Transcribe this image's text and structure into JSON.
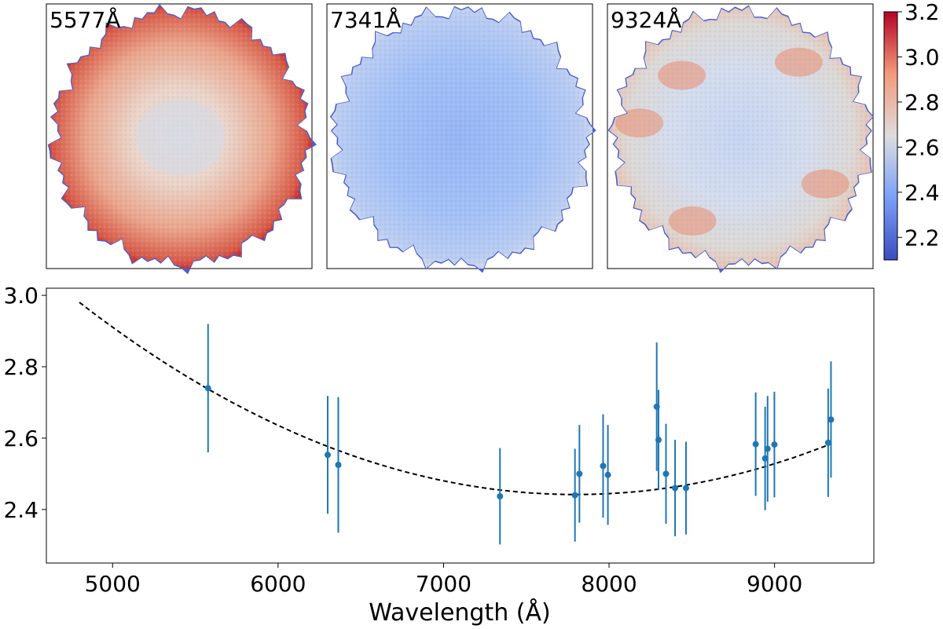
{
  "colors": {
    "errorbar": "#1f77b4",
    "point": "#1f77b4",
    "fit": "#000000",
    "cmap_low": "#3b4cc0",
    "cmap_mid": "#dddddd",
    "cmap_high": "#b40426"
  },
  "chart_data": [
    {
      "type": "heatmap",
      "panels": [
        {
          "label": "5577Å",
          "variant": "warm"
        },
        {
          "label": "7341Å",
          "variant": "cool"
        },
        {
          "label": "9324Å",
          "variant": "mixed"
        }
      ],
      "colorbar": {
        "vmin": 2.1,
        "vmax": 3.2,
        "ticks": [
          2.2,
          2.4,
          2.6,
          2.8,
          3.0,
          3.2
        ],
        "tick_labels": [
          "2.2",
          "2.4",
          "2.6",
          "2.8",
          "3.0",
          "3.2"
        ],
        "colormap": "coolwarm"
      }
    },
    {
      "type": "scatter",
      "xlabel": "Wavelength (Å)",
      "ylabel": "",
      "xlim": [
        4600,
        9600
      ],
      "ylim": [
        2.25,
        3.02
      ],
      "xticks": [
        5000,
        6000,
        7000,
        8000,
        9000
      ],
      "xtick_labels": [
        "5000",
        "6000",
        "7000",
        "8000",
        "9000"
      ],
      "yticks": [
        2.4,
        2.6,
        2.8,
        3.0
      ],
      "ytick_labels": [
        "2.4",
        "2.6",
        "2.8",
        "3.0"
      ],
      "points": [
        {
          "x": 5577,
          "y": 2.74,
          "err": 0.18
        },
        {
          "x": 6300,
          "y": 2.553,
          "err": 0.165
        },
        {
          "x": 6364,
          "y": 2.525,
          "err": 0.19
        },
        {
          "x": 7341,
          "y": 2.437,
          "err": 0.135
        },
        {
          "x": 7794,
          "y": 2.44,
          "err": 0.13
        },
        {
          "x": 7821,
          "y": 2.5,
          "err": 0.137
        },
        {
          "x": 7964,
          "y": 2.522,
          "err": 0.145
        },
        {
          "x": 7993,
          "y": 2.497,
          "err": 0.14
        },
        {
          "x": 8288,
          "y": 2.688,
          "err": 0.18
        },
        {
          "x": 8299,
          "y": 2.595,
          "err": 0.14
        },
        {
          "x": 8344,
          "y": 2.5,
          "err": 0.14
        },
        {
          "x": 8399,
          "y": 2.46,
          "err": 0.135
        },
        {
          "x": 8465,
          "y": 2.46,
          "err": 0.13
        },
        {
          "x": 8886,
          "y": 2.583,
          "err": 0.145
        },
        {
          "x": 8943,
          "y": 2.543,
          "err": 0.145
        },
        {
          "x": 8958,
          "y": 2.57,
          "err": 0.148
        },
        {
          "x": 8999,
          "y": 2.582,
          "err": 0.148
        },
        {
          "x": 9324,
          "y": 2.587,
          "err": 0.152
        },
        {
          "x": 9341,
          "y": 2.652,
          "err": 0.163
        }
      ],
      "fit": {
        "type": "quadratic",
        "x_start": 4800,
        "x_end": 9340,
        "x_vertex": 7800,
        "y_vertex": 2.442,
        "curvature": 5.98e-08
      }
    }
  ]
}
